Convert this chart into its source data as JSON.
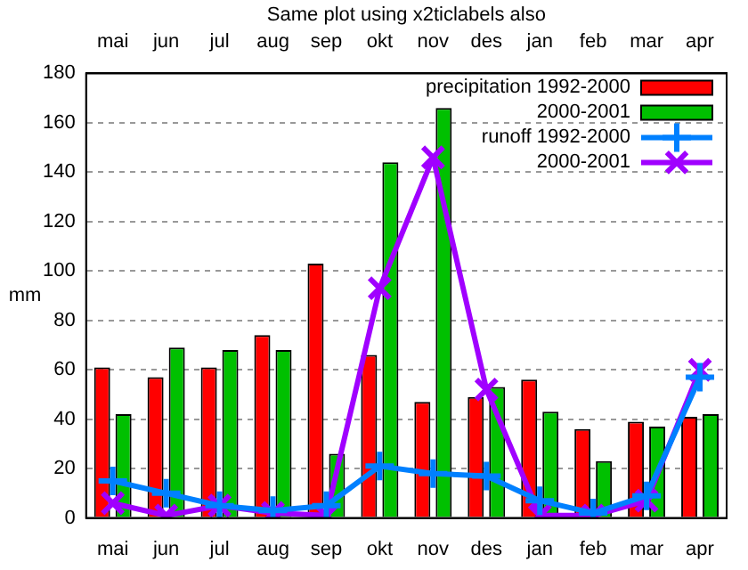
{
  "chart_data": {
    "type": "bar",
    "title": "Same plot using x2ticlabels also",
    "ylabel": "mm",
    "categories": [
      "mai",
      "jun",
      "jul",
      "aug",
      "sep",
      "okt",
      "nov",
      "des",
      "jan",
      "feb",
      "mar",
      "apr"
    ],
    "series": [
      {
        "name": "precipitation 1992-2000",
        "color": "#ff0000",
        "values": [
          61,
          57,
          61,
          74,
          103,
          66,
          47,
          49,
          56,
          36,
          39,
          41
        ]
      },
      {
        "name": "2000-2001",
        "color": "#00c000",
        "values": [
          42,
          69,
          68,
          68,
          26,
          144,
          166,
          53,
          43,
          23,
          37,
          42
        ]
      },
      {
        "name": "runoff 1992-2000",
        "type": "line",
        "color": "#0080ff",
        "marker": "plus",
        "values": [
          15,
          10,
          5,
          3,
          5,
          21,
          18,
          17,
          7,
          2,
          9,
          57
        ]
      },
      {
        "name": "2000-2001",
        "type": "line",
        "color": "#a000ff",
        "marker": "cross",
        "values": [
          6,
          1,
          5,
          2,
          1,
          93,
          146,
          52,
          1,
          1,
          7,
          60
        ]
      }
    ],
    "ylim": [
      0,
      180
    ],
    "yticks": [
      0,
      20,
      40,
      60,
      80,
      100,
      120,
      140,
      160,
      180
    ],
    "grid": "y",
    "legend": "top right"
  }
}
